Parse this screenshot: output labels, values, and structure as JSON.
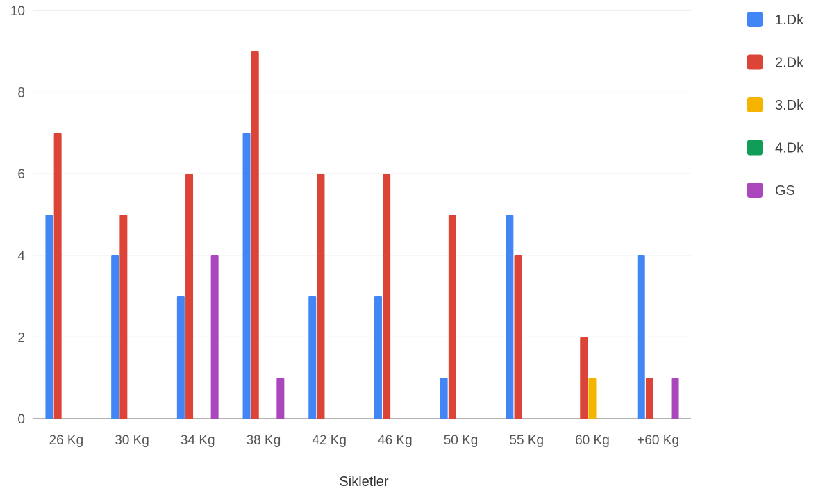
{
  "chart_data": {
    "type": "bar",
    "title": "",
    "xlabel": "Sikletler",
    "ylabel": "",
    "ylim": [
      0,
      10
    ],
    "yticks": [
      0,
      2,
      4,
      6,
      8,
      10
    ],
    "grid": true,
    "legend_position": "right",
    "categories": [
      "26 Kg",
      "30 Kg",
      "34 Kg",
      "38 Kg",
      "42 Kg",
      "46 Kg",
      "50 Kg",
      "55 Kg",
      "60 Kg",
      "+60 Kg"
    ],
    "series": [
      {
        "name": "1.Dk",
        "color": "#4285F4",
        "values": [
          5,
          4,
          3,
          7,
          3,
          3,
          1,
          5,
          0,
          4
        ]
      },
      {
        "name": "2.Dk",
        "color": "#DB4437",
        "values": [
          7,
          5,
          6,
          9,
          6,
          6,
          5,
          4,
          2,
          1
        ]
      },
      {
        "name": "3.Dk",
        "color": "#F4B400",
        "values": [
          0,
          0,
          0,
          0,
          0,
          0,
          0,
          0,
          1,
          0
        ]
      },
      {
        "name": "4.Dk",
        "color": "#0F9D58",
        "values": [
          0,
          0,
          0,
          0,
          0,
          0,
          0,
          0,
          0,
          0
        ]
      },
      {
        "name": "GS",
        "color": "#AB47BC",
        "values": [
          0,
          0,
          4,
          1,
          0,
          0,
          0,
          0,
          0,
          1
        ]
      }
    ]
  }
}
